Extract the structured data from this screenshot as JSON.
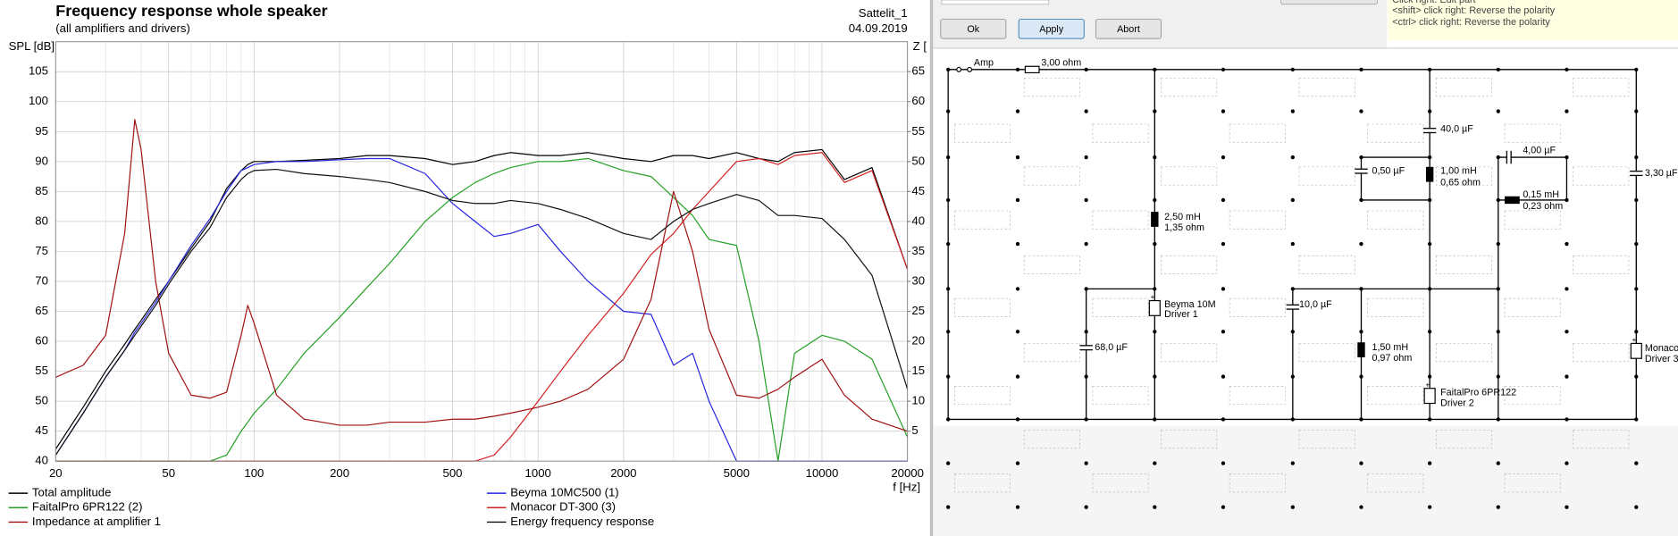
{
  "chart_data": {
    "type": "line",
    "title": "Frequency response whole speaker",
    "subtitle": "(all amplifiers and drivers)",
    "project": "Sattelit_1",
    "date": "04.09.2019",
    "ylabel": "SPL [dB]",
    "y2label": "Z [",
    "xlabel": "f [Hz]",
    "xscale": "log",
    "grid": true,
    "xlim": [
      20,
      20000
    ],
    "xticks": [
      20,
      50,
      100,
      200,
      500,
      1000,
      2000,
      5000,
      10000,
      20000
    ],
    "xminorticks": [
      30,
      40,
      60,
      70,
      80,
      90,
      300,
      400,
      600,
      700,
      800,
      900,
      3000,
      4000,
      6000,
      7000,
      8000,
      9000
    ],
    "ylim": [
      40,
      110
    ],
    "yticks": [
      40,
      45,
      50,
      55,
      60,
      65,
      70,
      75,
      80,
      85,
      90,
      95,
      100,
      105
    ],
    "y2lim": [
      0,
      70
    ],
    "y2ticks": [
      5,
      10,
      15,
      20,
      25,
      30,
      35,
      40,
      45,
      50,
      55,
      60,
      65
    ],
    "x": [
      20,
      25,
      30,
      35,
      38,
      40,
      45,
      50,
      60,
      70,
      80,
      90,
      95,
      100,
      120,
      150,
      200,
      250,
      300,
      400,
      500,
      600,
      700,
      800,
      1000,
      1200,
      1500,
      2000,
      2500,
      3000,
      3500,
      4000,
      5000,
      6000,
      7000,
      8000,
      10000,
      12000,
      15000,
      20000
    ],
    "series": [
      {
        "name": "Total amplitude",
        "color": "#000000",
        "values": [
          42,
          49,
          55,
          59.5,
          62,
          63.5,
          67,
          70,
          75.5,
          80,
          85.5,
          88.5,
          89.5,
          90,
          90,
          90.2,
          90.5,
          91,
          91,
          90.5,
          89.5,
          90,
          91,
          91.5,
          91,
          91,
          91.5,
          90.5,
          90,
          91,
          91,
          90.5,
          91.5,
          90.5,
          90,
          91.5,
          92,
          87,
          89,
          72
        ]
      },
      {
        "name": "Beyma 10MC500 (1)",
        "color": "#2424e0",
        "values": [
          41,
          48,
          54,
          58.5,
          61.5,
          63,
          66.5,
          70,
          76,
          80.5,
          85,
          88.5,
          89,
          89.5,
          90,
          90,
          90.3,
          90.5,
          90.5,
          88,
          83,
          80,
          77.5,
          78,
          79.5,
          75,
          70,
          65,
          64.5,
          56,
          58,
          50,
          40,
          40,
          40,
          40,
          40,
          40,
          40,
          40
        ]
      },
      {
        "name": "FaitalPro 6PR122 (2)",
        "color": "#22a022",
        "values": [
          40,
          40,
          40,
          40,
          40,
          40,
          40,
          40,
          40,
          40,
          41,
          45,
          46.5,
          48,
          52,
          58,
          64,
          69,
          73,
          80,
          84,
          86.5,
          88,
          89,
          90,
          90,
          90.5,
          88.5,
          87.5,
          84,
          81,
          77,
          76,
          60,
          40,
          58,
          61,
          60,
          57,
          44
        ]
      },
      {
        "name": "Monacor DT-300 (3)",
        "color": "#d42020",
        "values": [
          40,
          40,
          40,
          40,
          40,
          40,
          40,
          40,
          40,
          40,
          40,
          40,
          40,
          40,
          40,
          40,
          40,
          40,
          40,
          40,
          40,
          40,
          41,
          44,
          50,
          55,
          61,
          68,
          74.5,
          78,
          82,
          85,
          90,
          90.5,
          89.5,
          91,
          91.5,
          86.5,
          88.5,
          72
        ]
      },
      {
        "name": "Impedance at amplifier 1",
        "color": "#a01010",
        "axis": "y2",
        "values": [
          14,
          16,
          21,
          38,
          57,
          52,
          30,
          18,
          11,
          10.5,
          11.5,
          21,
          26,
          23,
          11,
          7,
          6,
          6,
          6.5,
          6.5,
          7,
          7,
          7.5,
          8,
          9,
          10,
          12,
          17,
          27,
          45,
          35,
          22,
          11,
          10.5,
          12,
          14,
          17,
          11,
          7,
          5
        ]
      },
      {
        "name": "Energy frequency response",
        "color": "#101010",
        "values": [
          41,
          48,
          54,
          58.5,
          61,
          62.5,
          66,
          69.5,
          75,
          79,
          84,
          87,
          88,
          88.5,
          88.7,
          88,
          87.5,
          87,
          86.5,
          85,
          83.5,
          83,
          83,
          83.5,
          83,
          82,
          80.5,
          78,
          77,
          80,
          82,
          83,
          84.5,
          83.5,
          81,
          81,
          80.5,
          77,
          71,
          52
        ]
      }
    ]
  },
  "toolbar": {
    "buttons": [
      "Ok",
      "Apply",
      "Abort"
    ]
  },
  "hints": [
    "Click right: Edit part",
    "<shift> click right: Reverse the polarity",
    "<ctrl> click right: Reverse the polarity"
  ],
  "circuit": {
    "labels": [
      "Amp",
      "3,00 ohm",
      "40,0 µF",
      "4,00 µF",
      "3,30 µF",
      "0,50 µF",
      "1,00 mH",
      "0,65 ohm",
      "0,15 mH",
      "0,23 ohm",
      "2,50 mH",
      "1,35 ohm",
      "Beyma 10M",
      "Driver 1",
      "10,0 µF",
      "68,0 µF",
      "1,50 mH",
      "0,97 ohm",
      "FaitalPro 6PR122",
      "Driver 2",
      "Monacor",
      "Driver 3"
    ]
  }
}
